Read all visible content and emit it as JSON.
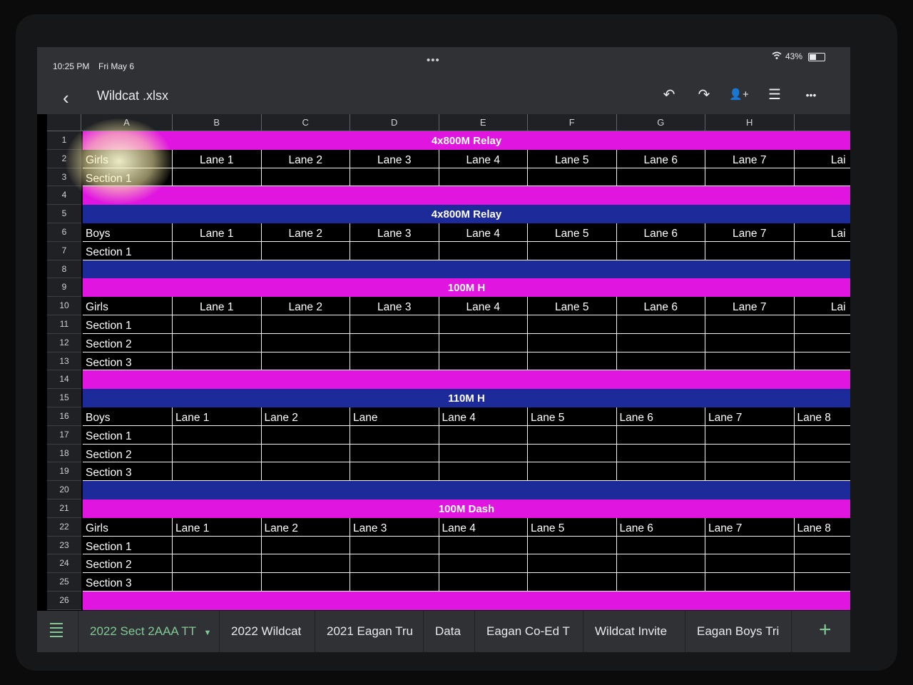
{
  "status_bar": {
    "time": "10:25 PM",
    "date": "Fri May 6",
    "battery": "43%",
    "more": "•••"
  },
  "toolbar": {
    "title": "Wildcat .xlsx",
    "back_icon": "‹",
    "undo_icon": "↶",
    "redo_icon": "↷",
    "share_icon": "👤+",
    "comment_icon": "☰",
    "more_icon": "•••"
  },
  "columns": [
    "A",
    "B",
    "C",
    "D",
    "E",
    "F",
    "G",
    "H",
    ""
  ],
  "rows": [
    "1",
    "2",
    "3",
    "4",
    "5",
    "6",
    "7",
    "8",
    "9",
    "10",
    "11",
    "12",
    "13",
    "14",
    "15",
    "16",
    "17",
    "18",
    "19",
    "20",
    "21",
    "22",
    "23",
    "24",
    "25",
    "26"
  ],
  "colors": {
    "magenta_band": "#e015e0",
    "blue_band": "#1c2a9a",
    "active_tab": "#81c995"
  },
  "sections": [
    {
      "header": "4x800M Relay",
      "header_color": "magenta",
      "group": "Girls",
      "lanes": [
        "Lane 1",
        "Lane 2",
        "Lane 3",
        "Lane 4",
        "Lane 5",
        "Lane 6",
        "Lane 7",
        "Lai"
      ],
      "sections": [
        "Section 1"
      ]
    },
    {
      "header": "4x800M Relay",
      "header_color": "blue",
      "group": "Boys",
      "lanes": [
        "Lane 1",
        "Lane 2",
        "Lane 3",
        "Lane 4",
        "Lane 5",
        "Lane 6",
        "Lane 7",
        "Lai"
      ],
      "sections": [
        "Section 1"
      ]
    },
    {
      "header": "100M H",
      "header_color": "magenta",
      "group": "Girls",
      "lanes": [
        "Lane 1",
        "Lane 2",
        "Lane 3",
        "Lane 4",
        "Lane 5",
        "Lane 6",
        "Lane 7",
        "Lai"
      ],
      "sections": [
        "Section 1",
        "Section 2",
        "Section 3"
      ]
    },
    {
      "header": "110M H",
      "header_color": "blue",
      "group": "Boys",
      "lanes": [
        "Lane 1",
        "Lane 2",
        "Lane",
        "Lane 4",
        "Lane 5",
        "Lane 6",
        "Lane 7",
        "Lane 8"
      ],
      "sections": [
        "Section 1",
        "Section 2",
        "Section 3"
      ]
    },
    {
      "header": "100M Dash",
      "header_color": "magenta",
      "group": "Girls",
      "lanes": [
        "Lane 1",
        "Lane 2",
        "Lane 3",
        "Lane 4",
        "Lane 5",
        "Lane 6",
        "Lane 7",
        "Lane 8"
      ],
      "sections": [
        "Section 1",
        "Section 2",
        "Section 3"
      ]
    }
  ],
  "sheet_tabs": [
    "2022 Sect 2AAA TT",
    "2022 Wildcat",
    "2021 Eagan Tru",
    "Data",
    "Eagan Co-Ed T",
    "Wildcat Invite",
    "Eagan Boys Tri"
  ],
  "active_tab_index": 0,
  "add_sheet_icon": "+"
}
